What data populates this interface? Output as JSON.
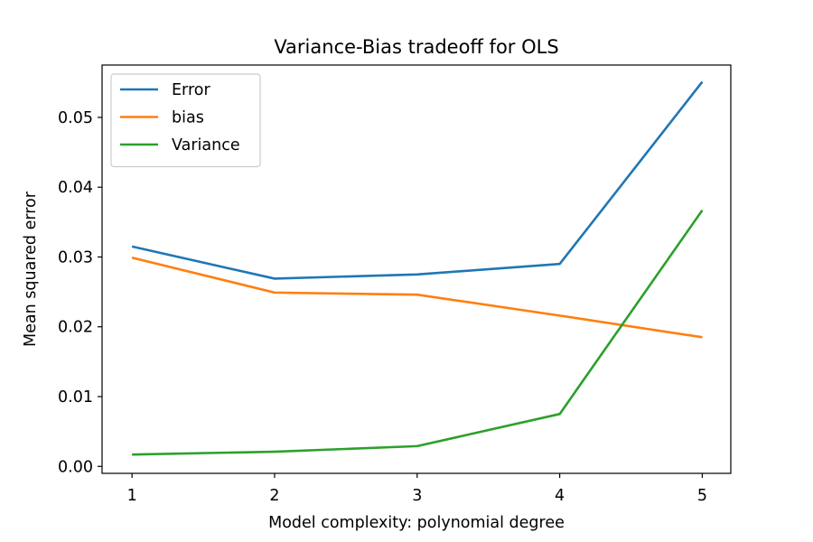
{
  "chart_data": {
    "type": "line",
    "title": "Variance-Bias tradeoff for OLS",
    "xlabel": "Model complexity: polynomial degree",
    "ylabel": "Mean squared error",
    "x": [
      1,
      2,
      3,
      4,
      5
    ],
    "x_ticks": [
      "1",
      "2",
      "3",
      "4",
      "5"
    ],
    "y_ticks": [
      "0.00",
      "0.01",
      "0.02",
      "0.03",
      "0.04",
      "0.05"
    ],
    "xlim": [
      0.79,
      5.2
    ],
    "ylim": [
      -0.001,
      0.0575
    ],
    "grid": false,
    "legend_position": "top-left",
    "series": [
      {
        "name": "Error",
        "color": "#1f77b4",
        "values": [
          0.0315,
          0.0269,
          0.0275,
          0.029,
          0.0551
        ]
      },
      {
        "name": "bias",
        "color": "#ff7f0e",
        "values": [
          0.0299,
          0.0249,
          0.0246,
          0.0216,
          0.0185
        ]
      },
      {
        "name": "Variance",
        "color": "#2ca02c",
        "values": [
          0.0017,
          0.0021,
          0.0029,
          0.0075,
          0.0367
        ]
      }
    ]
  }
}
